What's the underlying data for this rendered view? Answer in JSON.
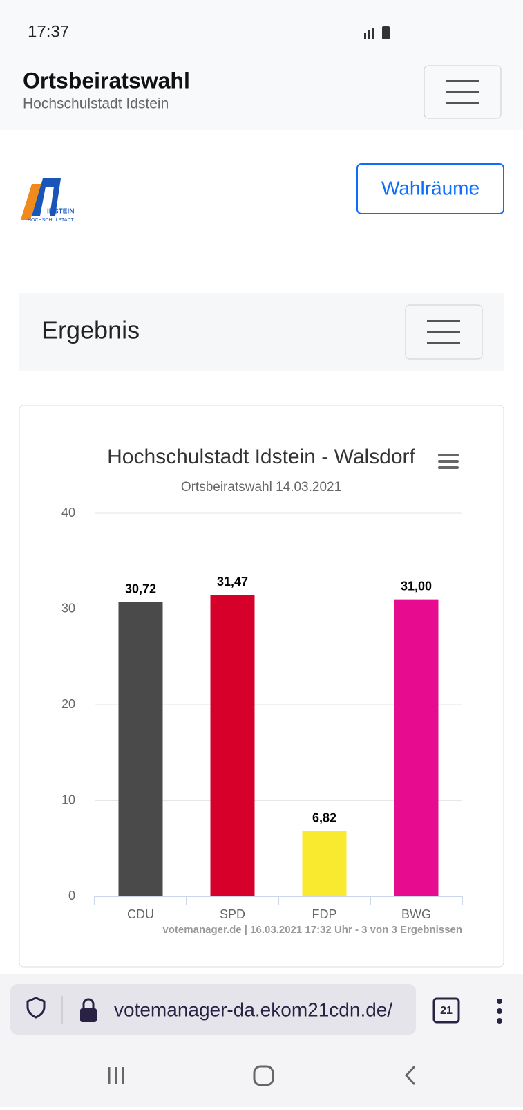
{
  "status_bar": {
    "time": "17:37"
  },
  "header": {
    "title": "Ortsbeiratswahl",
    "subtitle": "Hochschulstadt Idstein"
  },
  "logo": {
    "text": "IDSTEIN",
    "subtext": "HOCHSCHULSTADT"
  },
  "button": "Wahlräume",
  "section": {
    "title": "Ergebnis"
  },
  "chart_data": {
    "type": "bar",
    "title": "Hochschulstadt Idstein - Walsdorf",
    "subtitle": "Ortsbeiratswahl 14.03.2021",
    "categories": [
      "CDU",
      "SPD",
      "FDP",
      "BWG"
    ],
    "values": [
      30.72,
      31.47,
      6.82,
      31.0
    ],
    "value_labels": [
      "30,72",
      "31,47",
      "6,82",
      "31,00"
    ],
    "colors": [
      "#4a4a4a",
      "#d6002a",
      "#f9e92f",
      "#e60b8f"
    ],
    "ylim": [
      0,
      40
    ],
    "yticks": [
      0,
      10,
      20,
      30,
      40
    ],
    "grid": true,
    "credits": "votemanager.de | 16.03.2021 17:32 Uhr - 3 von 3 Ergebnissen"
  },
  "browser": {
    "url": "votemanager-da.ekom21cdn.de/",
    "tabs": "21"
  }
}
